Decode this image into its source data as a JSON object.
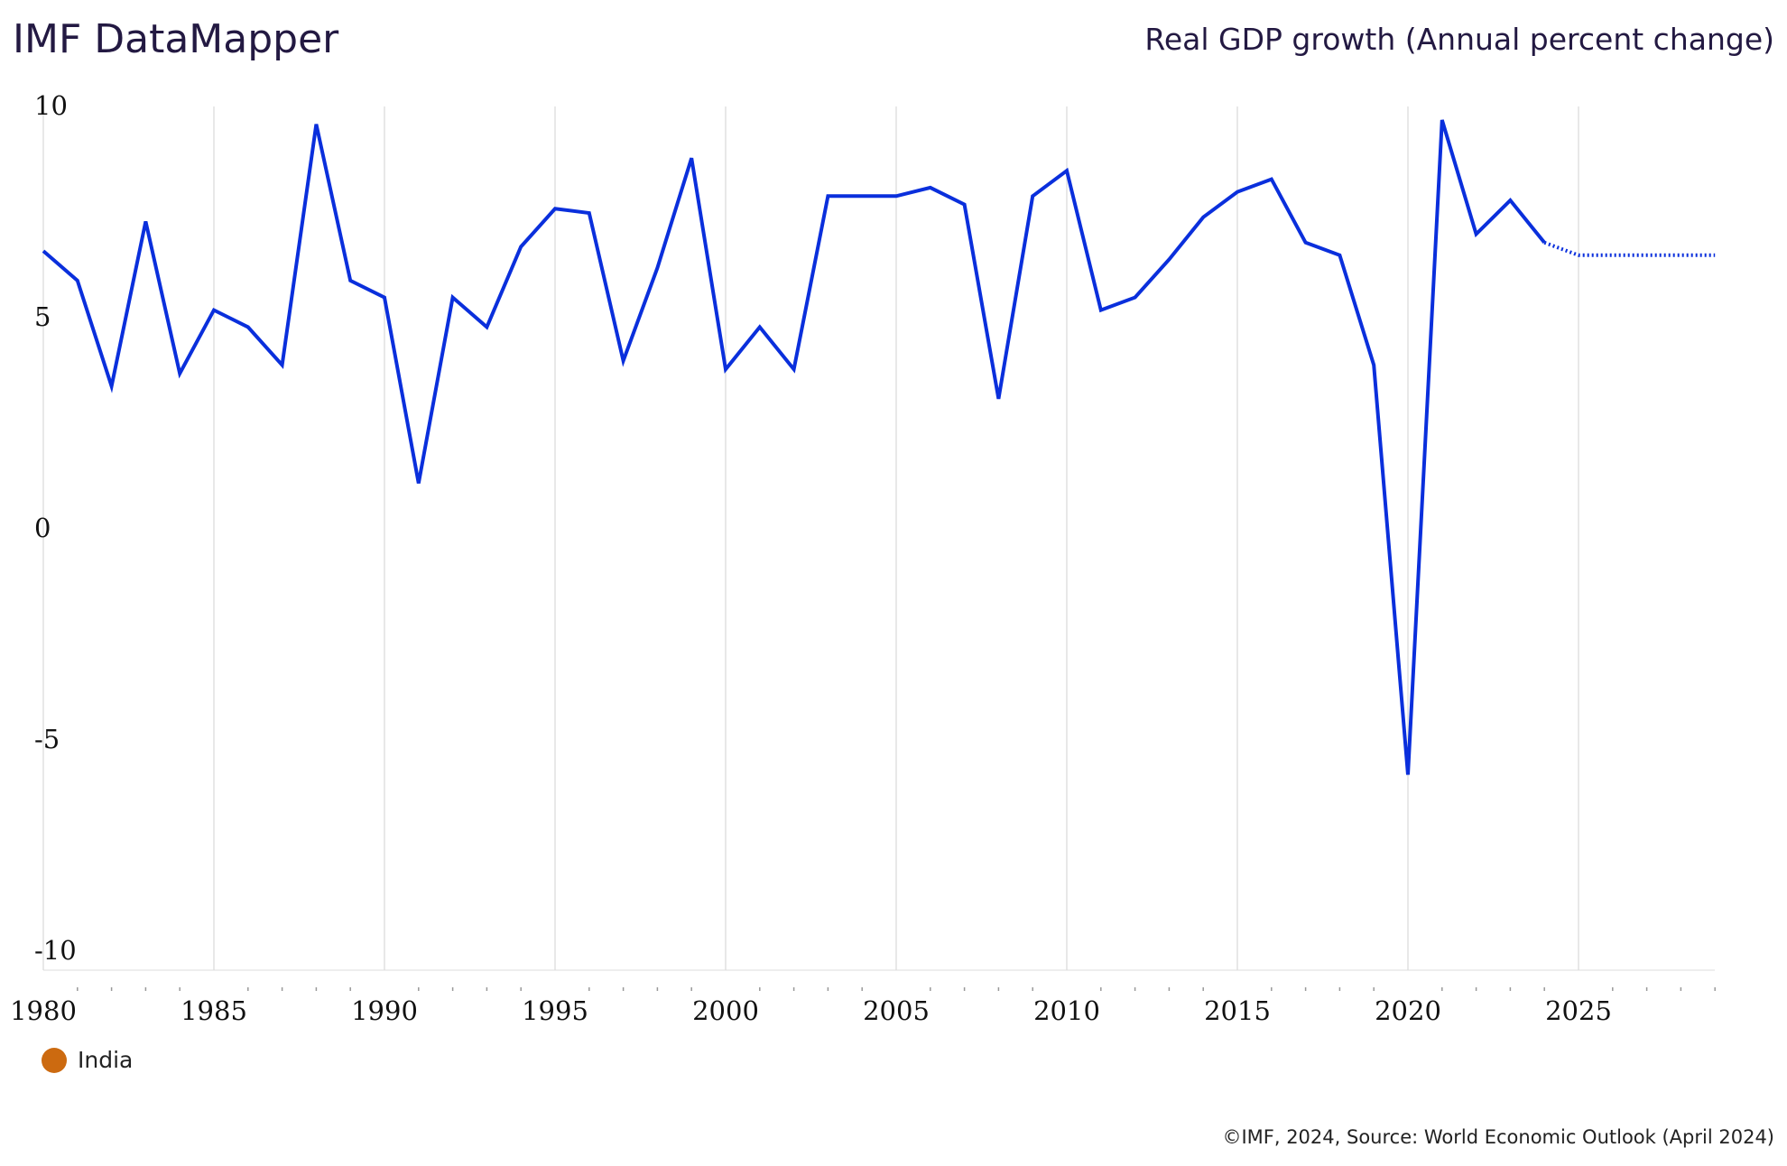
{
  "header": {
    "title": "IMF DataMapper",
    "subtitle": "Real GDP growth (Annual percent change)"
  },
  "footer": {
    "credit": "©IMF, 2024, Source: World Economic Outlook (April 2024)"
  },
  "legend": {
    "items": [
      {
        "label": "India",
        "color": "#cc6a10"
      }
    ]
  },
  "chart_data": {
    "type": "line",
    "title": "Real GDP growth (Annual percent change)",
    "ylim": [
      -10,
      10
    ],
    "yticks": [
      10,
      5,
      0,
      -5,
      -10
    ],
    "xticks": [
      1980,
      1985,
      1990,
      1995,
      2000,
      2005,
      2010,
      2015,
      2020,
      2025
    ],
    "xlim": [
      1980,
      2029
    ],
    "grid": "vertical",
    "line_color": "#0a2fdc",
    "projection_start": 2024,
    "x": [
      1980,
      1981,
      1982,
      1983,
      1984,
      1985,
      1986,
      1987,
      1988,
      1989,
      1990,
      1991,
      1992,
      1993,
      1994,
      1995,
      1996,
      1997,
      1998,
      1999,
      2000,
      2001,
      2002,
      2003,
      2004,
      2005,
      2006,
      2007,
      2008,
      2009,
      2010,
      2011,
      2012,
      2013,
      2014,
      2015,
      2016,
      2017,
      2018,
      2019,
      2020,
      2021,
      2022,
      2023,
      2024,
      2025,
      2026,
      2027,
      2028,
      2029
    ],
    "series": [
      {
        "name": "India",
        "values": [
          6.6,
          5.9,
          3.4,
          7.3,
          3.7,
          5.2,
          4.8,
          3.9,
          9.6,
          5.9,
          5.5,
          1.1,
          5.5,
          4.8,
          6.7,
          7.6,
          7.5,
          4.0,
          6.2,
          8.8,
          3.8,
          4.8,
          3.8,
          7.9,
          7.9,
          7.9,
          8.1,
          7.7,
          3.1,
          7.9,
          8.5,
          5.2,
          5.5,
          6.4,
          7.4,
          8.0,
          8.3,
          6.8,
          6.5,
          3.9,
          -5.8,
          9.7,
          7.0,
          7.8,
          6.8,
          6.5,
          6.5,
          6.5,
          6.5,
          6.5
        ]
      }
    ]
  }
}
